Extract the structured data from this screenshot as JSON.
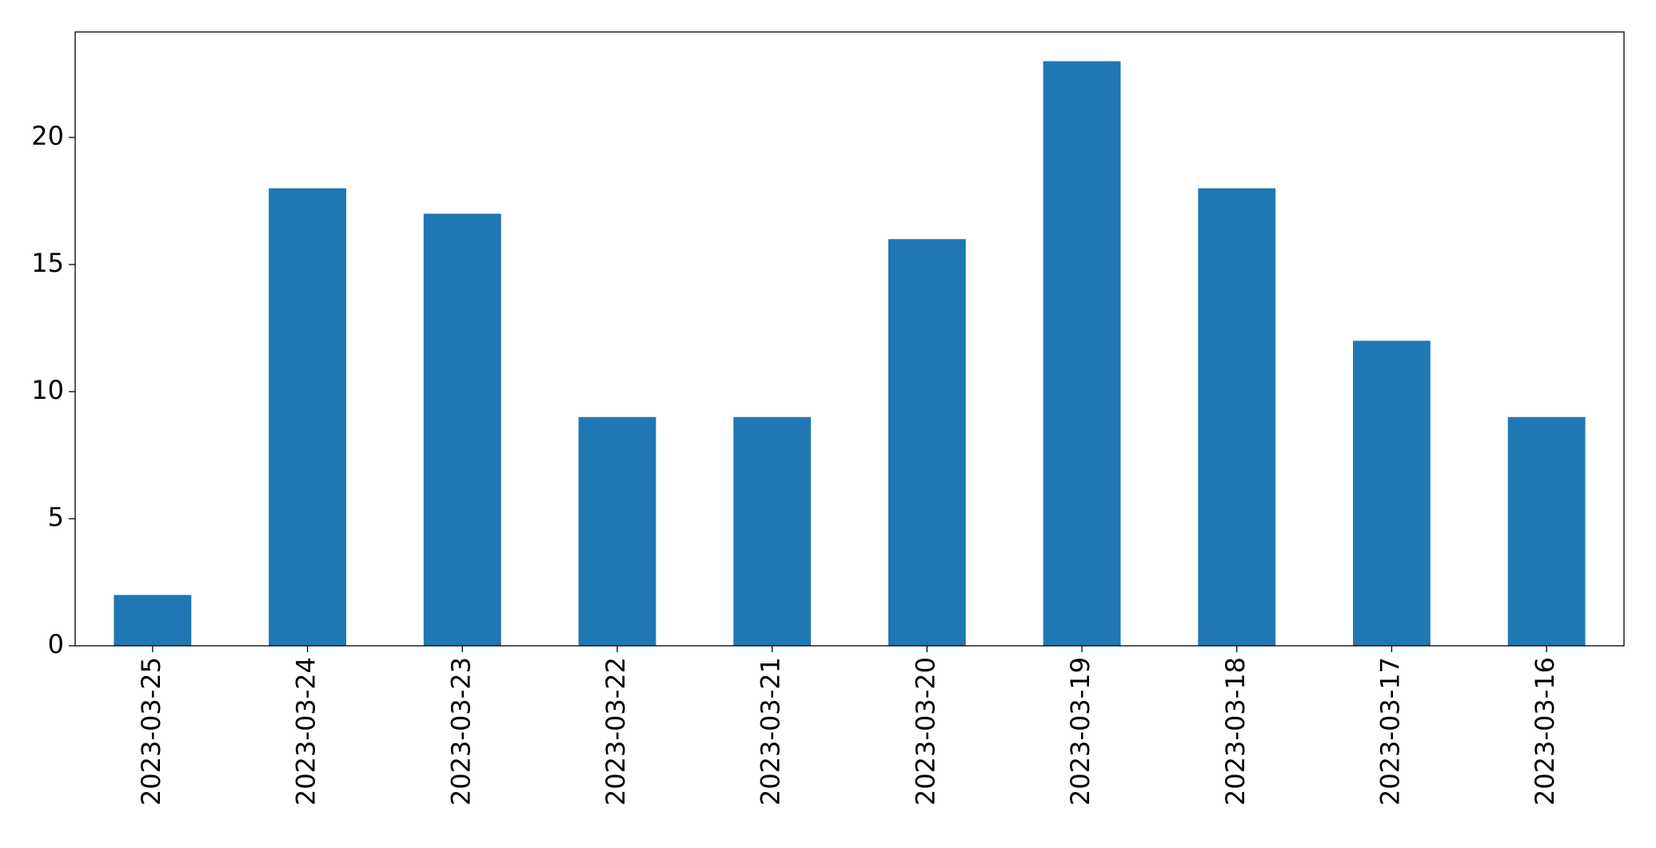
{
  "chart_data": {
    "type": "bar",
    "categories": [
      "2023-03-25",
      "2023-03-24",
      "2023-03-23",
      "2023-03-22",
      "2023-03-21",
      "2023-03-20",
      "2023-03-19",
      "2023-03-18",
      "2023-03-17",
      "2023-03-16"
    ],
    "values": [
      2,
      18,
      17,
      9,
      9,
      16,
      23,
      18,
      12,
      9
    ],
    "color": "#1f77b4",
    "ylim": [
      0,
      24.15
    ],
    "yticks": [
      0,
      5,
      10,
      15,
      20
    ],
    "grid": false
  }
}
